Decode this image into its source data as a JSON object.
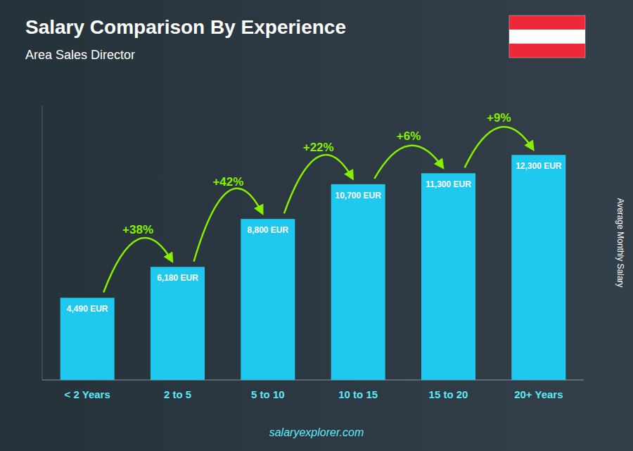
{
  "chart_data": {
    "type": "bar",
    "title": "Salary Comparison By Experience",
    "subtitle": "Area Sales Director",
    "y_label": "Average Monthly Salary",
    "footer": "salaryexplorer.com",
    "categories": [
      "< 2 Years",
      "2 to 5",
      "5 to 10",
      "10 to 15",
      "15 to 20",
      "20+ Years"
    ],
    "values": [
      4490,
      6180,
      8800,
      10700,
      11300,
      12300
    ],
    "value_labels": [
      "4,490 EUR",
      "6,180 EUR",
      "8,800 EUR",
      "10,700 EUR",
      "11,300 EUR",
      "12,300 EUR"
    ],
    "data_labels": true,
    "annotations": [
      "+38%",
      "+42%",
      "+22%",
      "+6%",
      "+9%"
    ],
    "color": "#1ec8ef",
    "ylim": [
      0,
      15000
    ],
    "tick_labels": "x",
    "grid": false
  }
}
